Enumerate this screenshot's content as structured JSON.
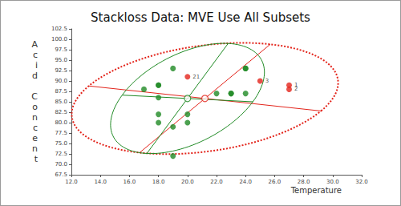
{
  "chart_data": {
    "type": "scatter",
    "title": "Stackloss Data: MVE Use All Subsets",
    "x_label": "Temperature",
    "y_label": "Acid Concent",
    "xlim": [
      12,
      32
    ],
    "xticks": [
      {
        "value": 12,
        "label": "12.0"
      },
      {
        "value": 14,
        "label": "14.0"
      },
      {
        "value": 16,
        "label": "16.0"
      },
      {
        "value": 18,
        "label": "18.0"
      },
      {
        "value": 20,
        "label": "20.0"
      },
      {
        "value": 22,
        "label": "22.0"
      },
      {
        "value": 24,
        "label": "24.0"
      },
      {
        "value": 26,
        "label": "26.0"
      },
      {
        "value": 28,
        "label": "28.0"
      },
      {
        "value": 30,
        "label": "30.0"
      },
      {
        "value": 32,
        "label": "32.0"
      }
    ],
    "ylim": [
      67.5,
      102.5
    ],
    "yticks": [
      67.5,
      {
        "value": 70,
        "label": "70.0"
      },
      72.5,
      {
        "value": 75,
        "label": "75.0"
      },
      77.5,
      {
        "value": 80,
        "label": "80.0"
      },
      82.5,
      {
        "value": 85,
        "label": "85.0"
      },
      87.5,
      {
        "value": 90,
        "label": "90.0"
      },
      92.5,
      {
        "value": 95,
        "label": "95.0"
      },
      97.5,
      {
        "value": 100,
        "label": "100.0"
      },
      102.5
    ],
    "grid": false,
    "series": [
      {
        "color": "#e3241b",
        "marker": "circle",
        "x": [
          27,
          27,
          25,
          20
        ],
        "values": [
          89,
          88,
          90,
          91
        ],
        "labels": [
          "1",
          "2",
          "3",
          "21"
        ]
      },
      {
        "color": "#1f8a24",
        "marker": "circle",
        "x": [
          24,
          22,
          23,
          24,
          24,
          23,
          18,
          18,
          17,
          18,
          19,
          18,
          18,
          19,
          19,
          20,
          20
        ],
        "values": [
          87,
          87,
          87,
          93,
          93,
          87,
          80,
          89,
          88,
          82,
          93,
          89,
          86,
          72,
          79,
          80,
          82
        ]
      }
    ],
    "ellipses": [
      {
        "color": "#e3241b",
        "line_style": "dotted",
        "center": [
          21.2,
          85.8
        ],
        "axes": [
          [
            13.2,
            88.8,
            29.2,
            82.8
          ],
          [
            16.7,
            72.8,
            25.7,
            98.8
          ]
        ]
      },
      {
        "color": "#1f8a24",
        "line_style": "solid",
        "center": [
          20.0,
          85.8
        ],
        "axes": [
          [
            15.5,
            86.6,
            24.5,
            85.0
          ],
          [
            17.2,
            72.6,
            22.8,
            99.0
          ]
        ]
      }
    ]
  }
}
